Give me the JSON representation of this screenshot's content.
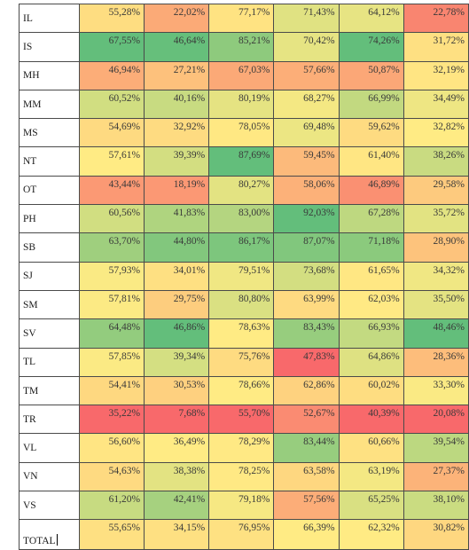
{
  "rows": [
    {
      "code": "IL",
      "values": [
        "55,28%",
        "22,02%",
        "77,17%",
        "71,43%",
        "64,12%",
        "22,78%"
      ]
    },
    {
      "code": "IS",
      "values": [
        "67,55%",
        "46,64%",
        "85,21%",
        "70,42%",
        "74,26%",
        "31,72%"
      ]
    },
    {
      "code": "MH",
      "values": [
        "46,94%",
        "27,21%",
        "67,03%",
        "57,66%",
        "50,87%",
        "32,19%"
      ]
    },
    {
      "code": "MM",
      "values": [
        "60,52%",
        "40,16%",
        "80,19%",
        "68,27%",
        "66,99%",
        "34,49%"
      ]
    },
    {
      "code": "MS",
      "values": [
        "54,69%",
        "32,92%",
        "78,05%",
        "69,48%",
        "59,62%",
        "32,82%"
      ]
    },
    {
      "code": "NT",
      "values": [
        "57,61%",
        "39,39%",
        "87,69%",
        "59,45%",
        "61,40%",
        "38,26%"
      ]
    },
    {
      "code": "OT",
      "values": [
        "43,44%",
        "18,19%",
        "80,27%",
        "58,06%",
        "46,89%",
        "29,58%"
      ]
    },
    {
      "code": "PH",
      "values": [
        "60,56%",
        "41,83%",
        "83,00%",
        "92,03%",
        "67,28%",
        "35,72%"
      ]
    },
    {
      "code": "SB",
      "values": [
        "63,70%",
        "44,80%",
        "86,17%",
        "87,07%",
        "71,18%",
        "28,90%"
      ]
    },
    {
      "code": "SJ",
      "values": [
        "57,93%",
        "34,01%",
        "79,51%",
        "73,68%",
        "61,65%",
        "34,32%"
      ]
    },
    {
      "code": "SM",
      "values": [
        "57,81%",
        "29,75%",
        "80,80%",
        "63,99%",
        "62,03%",
        "35,50%"
      ]
    },
    {
      "code": "SV",
      "values": [
        "64,48%",
        "46,86%",
        "78,63%",
        "83,43%",
        "66,93%",
        "48,46%"
      ]
    },
    {
      "code": "TL",
      "values": [
        "57,85%",
        "39,34%",
        "75,76%",
        "47,83%",
        "64,86%",
        "28,36%"
      ]
    },
    {
      "code": "TM",
      "values": [
        "54,41%",
        "30,53%",
        "78,66%",
        "62,86%",
        "60,02%",
        "33,30%"
      ]
    },
    {
      "code": "TR",
      "values": [
        "35,22%",
        "7,68%",
        "55,70%",
        "52,67%",
        "40,39%",
        "20,08%"
      ]
    },
    {
      "code": "VL",
      "values": [
        "56,60%",
        "36,49%",
        "78,29%",
        "83,44%",
        "60,66%",
        "39,54%"
      ]
    },
    {
      "code": "VN",
      "values": [
        "54,63%",
        "38,38%",
        "78,25%",
        "63,58%",
        "63,19%",
        "27,37%"
      ]
    },
    {
      "code": "VS",
      "values": [
        "61,20%",
        "42,41%",
        "79,18%",
        "57,56%",
        "65,25%",
        "38,10%"
      ]
    }
  ],
  "total": {
    "code": "TOTAL",
    "values": [
      "55,65%",
      "34,15%",
      "76,95%",
      "66,39%",
      "62,32%",
      "30,82%"
    ]
  },
  "colors": {
    "low": "#f8696b",
    "mid": "#ffeb84",
    "high": "#63be7b"
  }
}
